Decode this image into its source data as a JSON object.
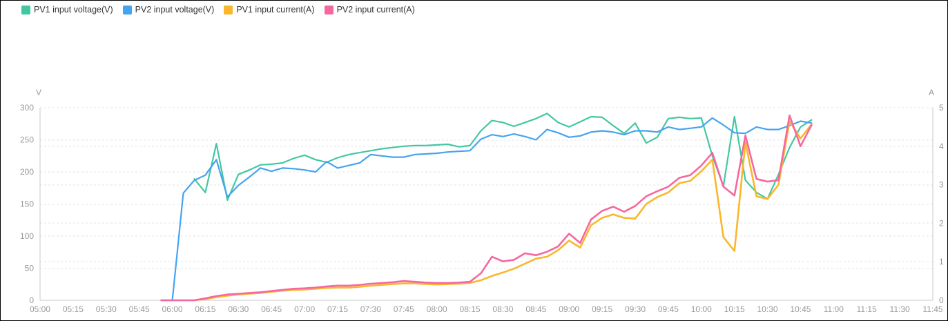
{
  "legend": {
    "items": [
      {
        "label": "PV1 input voltage(V)",
        "color": "#42c7a2"
      },
      {
        "label": "PV2 input voltage(V)",
        "color": "#45a3f0"
      },
      {
        "label": "PV1 input current(A)",
        "color": "#fbb72b"
      },
      {
        "label": "PV2 input current(A)",
        "color": "#f5689f"
      }
    ]
  },
  "colors": {
    "pv1_voltage": "#42c7a2",
    "pv2_voltage": "#45a3f0",
    "pv1_current": "#fbb72b",
    "pv2_current": "#f5689f",
    "axis_text": "#999999",
    "legend_text": "#333333",
    "grid_line": "#e3e3e3",
    "axis_line": "#c9c9c9"
  },
  "chart_data": {
    "type": "line",
    "title": "",
    "left_axis": {
      "name": "V",
      "min": 0,
      "max": 300,
      "ticks": [
        0,
        50,
        100,
        150,
        200,
        250,
        300
      ]
    },
    "right_axis": {
      "name": "A",
      "min": 0,
      "max": 5,
      "ticks": [
        0,
        1,
        2,
        3,
        4,
        5
      ]
    },
    "grid": {
      "horizontal": true,
      "style": "dashed"
    },
    "legend_position": "top-left",
    "x_tick_labels": [
      "05:00",
      "05:15",
      "05:30",
      "05:45",
      "06:00",
      "06:15",
      "06:30",
      "06:45",
      "07:00",
      "07:15",
      "07:30",
      "07:45",
      "08:00",
      "08:15",
      "08:30",
      "08:45",
      "09:00",
      "09:15",
      "09:30",
      "09:45",
      "10:00",
      "10:15",
      "10:30",
      "10:45",
      "11:00",
      "11:15",
      "11:30",
      "11:45"
    ],
    "x": [
      "05:55",
      "06:00",
      "06:05",
      "06:10",
      "06:15",
      "06:20",
      "06:25",
      "06:30",
      "06:35",
      "06:40",
      "06:45",
      "06:50",
      "06:55",
      "07:00",
      "07:05",
      "07:10",
      "07:15",
      "07:20",
      "07:25",
      "07:30",
      "07:35",
      "07:40",
      "07:45",
      "07:50",
      "07:55",
      "08:00",
      "08:05",
      "08:10",
      "08:15",
      "08:20",
      "08:25",
      "08:30",
      "08:35",
      "08:40",
      "08:45",
      "08:50",
      "08:55",
      "09:00",
      "09:05",
      "09:10",
      "09:15",
      "09:20",
      "09:25",
      "09:30",
      "09:35",
      "09:40",
      "09:45",
      "09:50",
      "09:55",
      "10:00",
      "10:05",
      "10:10",
      "10:15",
      "10:20",
      "10:25",
      "10:30",
      "10:35",
      "10:40",
      "10:45",
      "10:50"
    ],
    "series": [
      {
        "name": "PV1 input voltage(V)",
        "axis": "left",
        "unit": "V",
        "color": "#42c7a2",
        "values": [
          null,
          null,
          null,
          189,
          168,
          244,
          156,
          196,
          203,
          211,
          212,
          214,
          221,
          226,
          219,
          215,
          222,
          227,
          230,
          233,
          236,
          238,
          240,
          241,
          241,
          242,
          243,
          239,
          241,
          264,
          280,
          277,
          271,
          277,
          283,
          291,
          277,
          270,
          278,
          286,
          285,
          272,
          260,
          276,
          245,
          254,
          283,
          285,
          283,
          284,
          225,
          178,
          286,
          187,
          168,
          158,
          196,
          238,
          270,
          281
        ]
      },
      {
        "name": "PV2 input voltage(V)",
        "axis": "left",
        "unit": "V",
        "color": "#45a3f0",
        "values": [
          0,
          0,
          167,
          187,
          195,
          219,
          161,
          179,
          192,
          206,
          201,
          206,
          205,
          203,
          200,
          216,
          206,
          210,
          214,
          227,
          225,
          223,
          223,
          227,
          228,
          229,
          231,
          232,
          233,
          251,
          258,
          255,
          259,
          255,
          250,
          266,
          261,
          254,
          256,
          262,
          264,
          262,
          258,
          264,
          264,
          262,
          270,
          266,
          268,
          270,
          284,
          273,
          261,
          260,
          270,
          266,
          266,
          272,
          279,
          276
        ]
      },
      {
        "name": "PV1 input current(A)",
        "axis": "right",
        "unit": "A",
        "color": "#fbb72b",
        "values": [
          0,
          0,
          0,
          0,
          0.03,
          0.08,
          0.12,
          0.15,
          0.17,
          0.19,
          0.22,
          0.25,
          0.27,
          0.28,
          0.3,
          0.32,
          0.33,
          0.33,
          0.35,
          0.38,
          0.4,
          0.42,
          0.44,
          0.44,
          0.42,
          0.41,
          0.42,
          0.43,
          0.45,
          0.52,
          0.63,
          0.72,
          0.82,
          0.95,
          1.08,
          1.13,
          1.3,
          1.55,
          1.37,
          1.95,
          2.14,
          2.23,
          2.14,
          2.12,
          2.5,
          2.68,
          2.8,
          3.04,
          3.1,
          3.35,
          3.65,
          1.64,
          1.28,
          4.1,
          2.7,
          2.63,
          3.0,
          4.65,
          4.2,
          4.57
        ]
      },
      {
        "name": "PV2 input current(A)",
        "axis": "right",
        "unit": "A",
        "color": "#f5689f",
        "values": [
          0,
          0,
          0,
          0,
          0.05,
          0.11,
          0.15,
          0.17,
          0.19,
          0.21,
          0.24,
          0.27,
          0.3,
          0.31,
          0.33,
          0.36,
          0.38,
          0.38,
          0.4,
          0.43,
          0.45,
          0.47,
          0.5,
          0.48,
          0.46,
          0.45,
          0.45,
          0.46,
          0.48,
          0.7,
          1.13,
          1.01,
          1.05,
          1.22,
          1.17,
          1.26,
          1.4,
          1.73,
          1.49,
          2.1,
          2.32,
          2.43,
          2.3,
          2.45,
          2.7,
          2.83,
          2.95,
          3.18,
          3.25,
          3.5,
          3.83,
          2.95,
          2.72,
          4.28,
          3.15,
          3.08,
          3.12,
          4.8,
          4.0,
          4.55
        ]
      }
    ]
  }
}
